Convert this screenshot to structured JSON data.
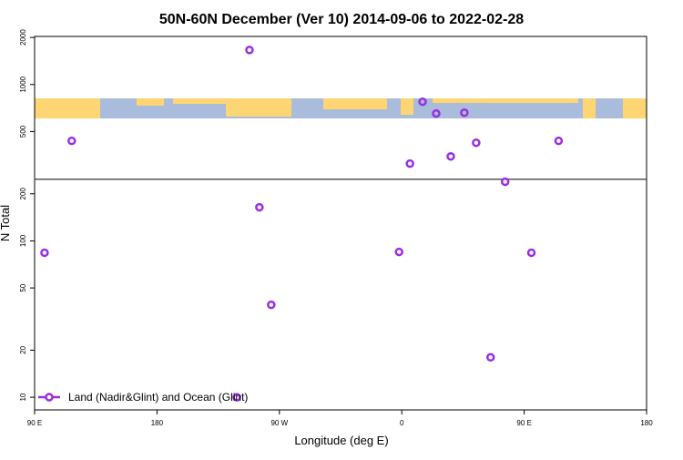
{
  "chart_data": {
    "type": "scatter",
    "title": "50N-60N December (Ver 10)   2014-09-06 to 2022-02-28",
    "x_label": "Longitude (deg E)",
    "y_label": "N Total",
    "log_y": true,
    "legend_position": "bottom-left",
    "xlim": [
      -270,
      180
    ],
    "xticks": [
      {
        "value": -270,
        "label": "90 E"
      },
      {
        "value": -180,
        "label": "180"
      },
      {
        "value": -90,
        "label": "90 W"
      },
      0,
      {
        "value": 90,
        "label": "90 E"
      },
      180
    ],
    "ylim": [
      8.3,
      2030
    ],
    "yticks": [
      10,
      20,
      50,
      100,
      200,
      500,
      1000,
      2000
    ],
    "reference_line": 248,
    "series": [
      {
        "name": "Land (Nadir&Glint) and Ocean (Glint)",
        "color": "#9b2fe0",
        "x": [
          -262.7,
          -242.7,
          -112,
          -104.7,
          -96,
          -121.3,
          -2,
          6,
          15.3,
          25.3,
          36,
          46,
          54.7,
          65.3,
          76,
          95.3,
          115.3
        ],
        "values": [
          84,
          436,
          1663,
          164,
          39,
          10,
          85,
          312,
          776,
          652,
          347,
          660,
          424,
          18,
          239,
          84,
          436
        ]
      }
    ]
  }
}
